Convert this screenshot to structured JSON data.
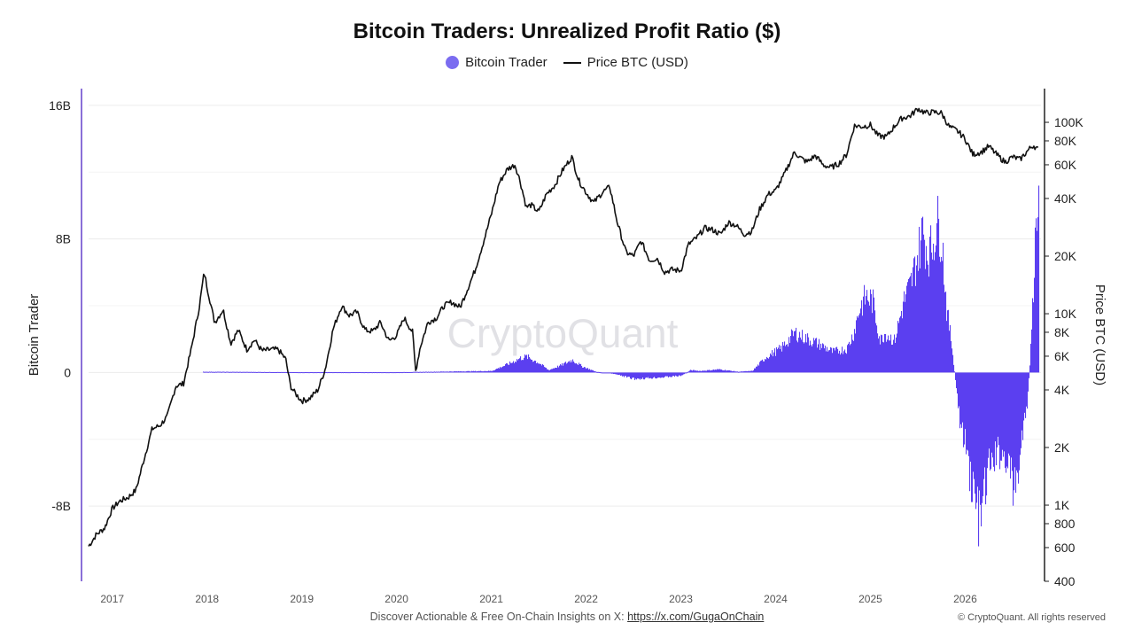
{
  "chart_data": {
    "type": "bar+line",
    "title": "Bitcoin Traders: Unrealized Profit Ratio ($)",
    "legend": [
      {
        "name": "Bitcoin Trader",
        "marker": "dot",
        "color": "#7b6cf0"
      },
      {
        "name": "Price BTC (USD)",
        "marker": "line",
        "color": "#111111"
      }
    ],
    "y_left": {
      "label": "Bitcoin Trader",
      "ticks": [
        {
          "value": 16,
          "label": "16B"
        },
        {
          "value": 8,
          "label": "8B"
        },
        {
          "value": 0,
          "label": "0"
        },
        {
          "value": -8,
          "label": "-8B"
        }
      ],
      "range": [
        -12.5,
        17
      ]
    },
    "y_right": {
      "label": "Price BTC (USD)",
      "scale": "log",
      "ticks": [
        {
          "value": 100000,
          "label": "100K"
        },
        {
          "value": 80000,
          "label": "80K"
        },
        {
          "value": 60000,
          "label": "60K"
        },
        {
          "value": 40000,
          "label": "40K"
        },
        {
          "value": 20000,
          "label": "20K"
        },
        {
          "value": 10000,
          "label": "10K"
        },
        {
          "value": 8000,
          "label": "8K"
        },
        {
          "value": 6000,
          "label": "6K"
        },
        {
          "value": 4000,
          "label": "4K"
        },
        {
          "value": 2000,
          "label": "2K"
        },
        {
          "value": 1000,
          "label": "1K"
        },
        {
          "value": 800,
          "label": "800"
        },
        {
          "value": 600,
          "label": "600"
        },
        {
          "value": 400,
          "label": "400"
        }
      ]
    },
    "x_ticks": [
      "2017",
      "2018",
      "2019",
      "2020",
      "2021",
      "2022",
      "2023",
      "2024",
      "2025",
      "2026"
    ],
    "x_range": [
      2016.75,
      2026.8
    ],
    "grid": true,
    "legend_position": "top-center",
    "series": [
      {
        "name": "Price BTC (USD)",
        "type": "line",
        "color": "#111111",
        "axis": "right",
        "x": [
          2016.75,
          2016.83,
          2016.92,
          2017.0,
          2017.08,
          2017.17,
          2017.25,
          2017.33,
          2017.42,
          2017.5,
          2017.58,
          2017.67,
          2017.75,
          2017.83,
          2017.92,
          2017.97,
          2018.0,
          2018.08,
          2018.17,
          2018.25,
          2018.33,
          2018.42,
          2018.5,
          2018.58,
          2018.67,
          2018.75,
          2018.83,
          2018.88,
          2018.92,
          2019.0,
          2019.08,
          2019.17,
          2019.25,
          2019.33,
          2019.42,
          2019.5,
          2019.58,
          2019.67,
          2019.75,
          2019.83,
          2019.92,
          2020.0,
          2020.08,
          2020.17,
          2020.2,
          2020.25,
          2020.33,
          2020.42,
          2020.5,
          2020.58,
          2020.67,
          2020.75,
          2020.83,
          2020.92,
          2021.0,
          2021.08,
          2021.17,
          2021.25,
          2021.3,
          2021.37,
          2021.42,
          2021.5,
          2021.58,
          2021.67,
          2021.75,
          2021.85,
          2021.92,
          2022.0,
          2022.08,
          2022.17,
          2022.25,
          2022.33,
          2022.42,
          2022.5,
          2022.58,
          2022.67,
          2022.75,
          2022.83,
          2022.9,
          2023.0,
          2023.08,
          2023.17,
          2023.25,
          2023.33,
          2023.42,
          2023.5,
          2023.58,
          2023.67,
          2023.75,
          2023.83,
          2023.92,
          2024.0,
          2024.08,
          2024.2,
          2024.25,
          2024.33,
          2024.42,
          2024.5,
          2024.58,
          2024.67,
          2024.75,
          2024.83,
          2024.92,
          2025.0,
          2025.08,
          2025.17,
          2025.25,
          2025.33,
          2025.42,
          2025.5,
          2025.58,
          2025.67,
          2025.75,
          2025.83,
          2025.92,
          2026.0,
          2026.08,
          2026.17,
          2026.25,
          2026.33,
          2026.42,
          2026.5,
          2026.58,
          2026.67,
          2026.72,
          2026.77
        ],
        "values": [
          610,
          700,
          760,
          960,
          1050,
          1100,
          1200,
          1700,
          2500,
          2600,
          2900,
          4200,
          4300,
          6400,
          11000,
          16500,
          13800,
          9000,
          10500,
          7000,
          8200,
          6500,
          7300,
          6400,
          6500,
          6500,
          5800,
          4200,
          3900,
          3500,
          3600,
          4000,
          5200,
          8300,
          11000,
          9800,
          10200,
          8200,
          8100,
          9000,
          7200,
          7700,
          9500,
          8000,
          5000,
          6700,
          9000,
          9500,
          11000,
          11500,
          10800,
          13500,
          17000,
          24000,
          33000,
          48000,
          57000,
          60000,
          50000,
          36000,
          37000,
          34000,
          42000,
          47000,
          56000,
          66000,
          50000,
          43000,
          38000,
          43000,
          46000,
          30000,
          21000,
          20000,
          24000,
          19000,
          19500,
          16500,
          17000,
          16800,
          23000,
          25000,
          28000,
          27500,
          26000,
          30000,
          29000,
          26000,
          27000,
          35000,
          42000,
          44000,
          52000,
          70000,
          66000,
          62000,
          67000,
          60000,
          58000,
          61000,
          68000,
          96000,
          95000,
          97000,
          85000,
          84000,
          95000,
          105000,
          108000,
          118000,
          112000,
          113000,
          112000,
          95000,
          90000,
          82000,
          68000,
          70000,
          75000,
          68000,
          62000,
          66000,
          64000,
          72000,
          76000,
          72000
        ]
      },
      {
        "name": "Bitcoin Trader",
        "type": "bar",
        "color": "#5b3ff0",
        "axis": "left",
        "x": [
          2017.95,
          2019.0,
          2020.0,
          2021.0,
          2021.2,
          2021.3,
          2021.37,
          2021.5,
          2021.6,
          2021.75,
          2021.85,
          2021.95,
          2022.1,
          2022.3,
          2022.5,
          2022.8,
          2023.0,
          2023.1,
          2023.2,
          2023.4,
          2023.6,
          2023.75,
          2023.8,
          2023.9,
          2024.05,
          2024.2,
          2024.3,
          2024.45,
          2024.6,
          2024.75,
          2024.82,
          2024.88,
          2024.95,
          2025.02,
          2025.1,
          2025.15,
          2025.25,
          2025.35,
          2025.42,
          2025.5,
          2025.55,
          2025.6,
          2025.65,
          2025.7,
          2025.75,
          2025.8,
          2025.85,
          2025.92,
          2025.95,
          2026.0,
          2026.05,
          2026.1,
          2026.15,
          2026.2,
          2026.25,
          2026.3,
          2026.35,
          2026.45,
          2026.5,
          2026.55,
          2026.6,
          2026.65,
          2026.68,
          2026.72,
          2026.75,
          2026.78
        ],
        "values": [
          0.05,
          0.02,
          0.02,
          0.1,
          0.6,
          0.9,
          1.0,
          0.6,
          0.15,
          0.5,
          0.8,
          0.4,
          0.05,
          -0.1,
          -0.4,
          -0.3,
          -0.2,
          0.15,
          0.1,
          0.2,
          0.05,
          0.1,
          0.4,
          1.0,
          1.5,
          2.5,
          2.2,
          1.8,
          1.3,
          1.5,
          2.5,
          4.0,
          4.8,
          4.5,
          2.0,
          2.5,
          2.0,
          4.5,
          5.5,
          7.5,
          9.0,
          7.5,
          8.0,
          9.5,
          8.5,
          4.0,
          2.0,
          -2.0,
          -3.5,
          -4.5,
          -6.5,
          -8.0,
          -9.5,
          -7.5,
          -6.0,
          -5.5,
          -5.0,
          -5.5,
          -7.5,
          -6.5,
          -4.0,
          -2.0,
          0.5,
          6.0,
          10.5,
          11.0
        ]
      }
    ],
    "watermark": "CryptoQuant",
    "footer": {
      "text": "Discover Actionable & Free On-Chain Insights on X: ",
      "link": "https://x.com/GugaOnChain",
      "copyright": "© CryptoQuant. All rights reserved"
    }
  }
}
